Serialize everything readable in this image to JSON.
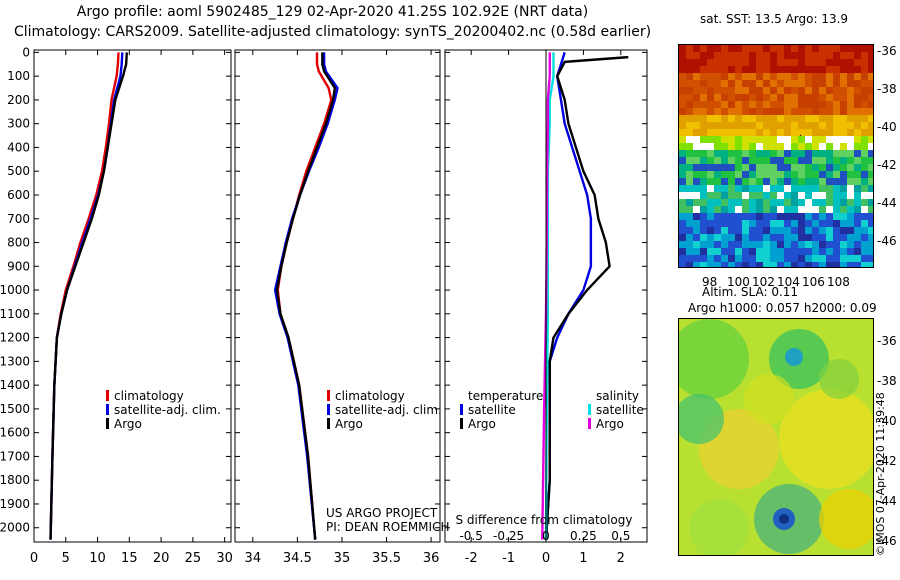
{
  "header": {
    "title_line1": "Argo profile: aoml 5902485_129 02-Apr-2020 41.25S 102.92E (NRT data)",
    "title_line2": "Climatology: CARS2009. Satellite-adjusted climatology: synTS_20200402.nc (0.58d earlier)"
  },
  "colors": {
    "climatology": "#e00000",
    "satellite": "#0000e0",
    "argo": "#000000",
    "salinity_sat": "#00e0e0",
    "salinity_argo": "#e000e0"
  },
  "chart_data": [
    {
      "type": "line",
      "name": "temperature",
      "ylim": [
        2060,
        -10
      ],
      "xlim": [
        0,
        31
      ],
      "yticks": [
        0,
        100,
        200,
        300,
        400,
        500,
        600,
        700,
        800,
        900,
        1000,
        1100,
        1200,
        1300,
        1400,
        1500,
        1600,
        1700,
        1800,
        1900,
        2000
      ],
      "xticks": [
        0,
        5,
        10,
        15,
        20,
        25,
        30
      ],
      "legend": [
        "climatology",
        "satellite-adj. clim.",
        "Argo"
      ],
      "series": [
        {
          "name": "climatology",
          "color": "#e00000",
          "x": [
            13.3,
            13.2,
            13.0,
            12.6,
            12.2,
            11.8,
            11.3,
            10.7,
            9.8,
            8.6,
            7.3,
            6.2,
            5.0,
            4.2,
            3.6,
            3.2,
            2.9,
            2.6
          ],
          "y": [
            0,
            50,
            100,
            150,
            200,
            300,
            400,
            500,
            600,
            700,
            800,
            900,
            1000,
            1100,
            1200,
            1400,
            1700,
            2050
          ]
        },
        {
          "name": "satellite-adj. clim.",
          "color": "#0000e0",
          "x": [
            13.9,
            13.8,
            13.6,
            13.1,
            12.6,
            12.1,
            11.6,
            11.0,
            10.1,
            8.9,
            7.6,
            6.4,
            5.2,
            4.3,
            3.6,
            3.2,
            2.9,
            2.6
          ],
          "y": [
            0,
            50,
            100,
            150,
            200,
            300,
            400,
            500,
            600,
            700,
            800,
            900,
            1000,
            1100,
            1200,
            1400,
            1700,
            2050
          ]
        },
        {
          "name": "Argo",
          "color": "#000000",
          "x": [
            14.6,
            14.5,
            14.0,
            13.4,
            12.8,
            12.2,
            11.6,
            11.0,
            10.2,
            9.1,
            7.8,
            6.5,
            5.2,
            4.3,
            3.6,
            3.2,
            2.9,
            2.6
          ],
          "y": [
            0,
            50,
            100,
            150,
            200,
            300,
            400,
            500,
            600,
            700,
            800,
            900,
            1000,
            1100,
            1200,
            1400,
            1700,
            2050
          ]
        }
      ]
    },
    {
      "type": "line",
      "name": "salinity",
      "ylim": [
        2060,
        -10
      ],
      "xlim": [
        33.8,
        36.1
      ],
      "xticks": [
        34,
        34.5,
        35,
        35.5,
        36
      ],
      "legend": [
        "climatology",
        "satellite-adj. clim.",
        "Argo"
      ],
      "series": [
        {
          "name": "climatology",
          "color": "#e00000",
          "x": [
            34.72,
            34.72,
            34.74,
            34.85,
            34.88,
            34.8,
            34.7,
            34.6,
            34.52,
            34.45,
            34.38,
            34.32,
            34.28,
            34.31,
            34.4,
            34.52,
            34.62,
            34.7
          ],
          "y": [
            0,
            50,
            80,
            150,
            200,
            300,
            400,
            500,
            600,
            700,
            800,
            900,
            1000,
            1100,
            1200,
            1400,
            1700,
            2050
          ]
        },
        {
          "name": "satellite-adj. clim.",
          "color": "#0000e0",
          "x": [
            34.8,
            34.8,
            34.82,
            34.95,
            34.92,
            34.84,
            34.74,
            34.63,
            34.53,
            34.44,
            34.37,
            34.31,
            34.25,
            34.3,
            34.39,
            34.51,
            34.61,
            34.7
          ],
          "y": [
            0,
            50,
            80,
            150,
            200,
            300,
            400,
            500,
            600,
            700,
            800,
            900,
            1000,
            1100,
            1200,
            1400,
            1700,
            2050
          ]
        },
        {
          "name": "Argo",
          "color": "#000000",
          "x": [
            34.78,
            34.78,
            34.8,
            34.92,
            34.9,
            34.82,
            34.72,
            34.62,
            34.53,
            34.45,
            34.38,
            34.32,
            34.27,
            34.31,
            34.4,
            34.52,
            34.62,
            34.7
          ],
          "y": [
            0,
            50,
            80,
            150,
            200,
            300,
            400,
            500,
            600,
            700,
            800,
            900,
            1000,
            1100,
            1200,
            1400,
            1700,
            2050
          ]
        }
      ]
    },
    {
      "type": "line",
      "name": "difference",
      "ylim": [
        2060,
        -10
      ],
      "xlim": [
        -2.7,
        2.7
      ],
      "xticks": [
        -2,
        -1,
        0,
        1,
        2
      ],
      "second_axis_label": "S difference from climatology",
      "second_axis_ticks": [
        "-0.5",
        "-0.25",
        "0",
        "0.25",
        "0.5"
      ],
      "legend": {
        "temperature": [
          "satellite",
          "Argo"
        ],
        "salinity": [
          "satellite",
          "Argo"
        ]
      },
      "series": [
        {
          "name": "T satellite",
          "color": "#0000e0",
          "x": [
            0.5,
            0.4,
            0.3,
            0.4,
            0.5,
            0.7,
            0.9,
            1.1,
            1.2,
            1.2,
            1.2,
            1.0,
            0.6,
            0.3,
            0.1,
            0.1,
            0.1,
            0.0
          ],
          "y": [
            0,
            50,
            100,
            200,
            300,
            400,
            500,
            600,
            700,
            800,
            900,
            1000,
            1100,
            1200,
            1300,
            1500,
            1800,
            2050
          ]
        },
        {
          "name": "T Argo",
          "color": "#000000",
          "x": [
            2.2,
            0.5,
            0.3,
            0.5,
            0.6,
            0.8,
            1.0,
            1.3,
            1.4,
            1.6,
            1.7,
            1.1,
            0.6,
            0.2,
            0.1,
            0.1,
            0.1,
            0.0
          ],
          "y": [
            20,
            40,
            100,
            200,
            300,
            400,
            500,
            600,
            700,
            800,
            900,
            1000,
            1100,
            1200,
            1300,
            1500,
            1800,
            2050
          ]
        },
        {
          "name": "S satellite",
          "color": "#00e0e0",
          "x": [
            0.2,
            0.2,
            0.1,
            0.1,
            0.05,
            0.05,
            0.05,
            0.02,
            0.0
          ],
          "y": [
            0,
            100,
            200,
            300,
            500,
            800,
            1100,
            1500,
            2050
          ]
        },
        {
          "name": "S Argo",
          "color": "#e000e0",
          "x": [
            0.1,
            0.1,
            0.05,
            0.05,
            0.03,
            0.02,
            0.0,
            -0.05,
            -0.1
          ],
          "y": [
            0,
            100,
            200,
            300,
            500,
            800,
            1100,
            1500,
            2050
          ]
        }
      ]
    }
  ],
  "credits": {
    "line1": "US ARGO PROJECT",
    "line2": "PI: DEAN ROEMMICH"
  },
  "maps": {
    "sst": {
      "title": "sat. SST: 13.5 Argo: 13.9",
      "xticks": [
        "98",
        "100",
        "102",
        "104",
        "106",
        "108"
      ],
      "yticks": [
        "-36",
        "-38",
        "-40",
        "-42",
        "-44",
        "-46"
      ]
    },
    "sla": {
      "title1": "Altim. SLA: 0.11",
      "title2": "Argo h1000: 0.057 h2000: 0.09",
      "yticks": [
        "-36",
        "-38",
        "-40",
        "-42",
        "-44",
        "-46"
      ]
    }
  },
  "watermark": "©IMOS 07-Apr-2020 11:39:48"
}
